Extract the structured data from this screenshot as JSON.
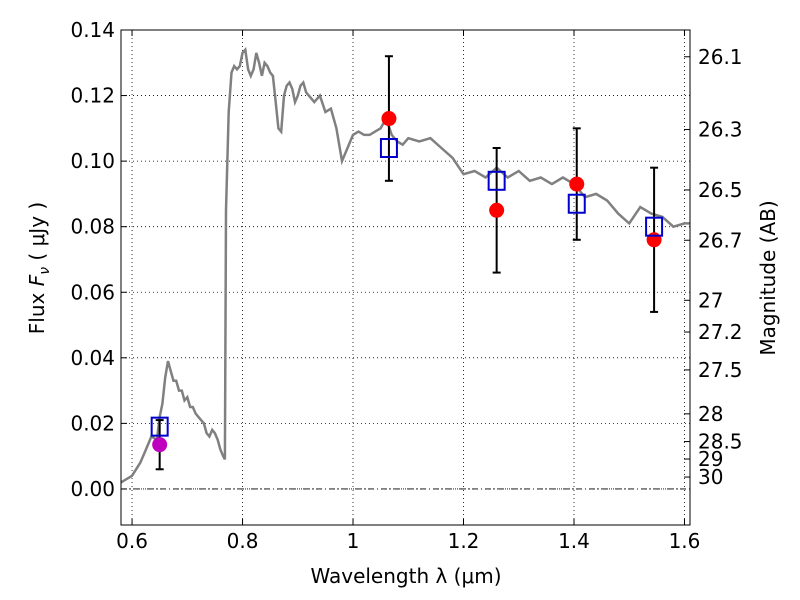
{
  "chart_data": {
    "type": "scatter",
    "xlabel": "Wavelength  λ (μm)",
    "ylabel": "Flux  F_ν  ( μJy )",
    "ylabel_parts": {
      "pre": "Flux  ",
      "sym": "F",
      "sub": "ν",
      "post": "  (  μJy  )"
    },
    "y2label": "Magnitude (AB)",
    "xlim": [
      0.58,
      1.61
    ],
    "ylim": [
      -0.011,
      0.14
    ],
    "grid": true,
    "x_ticks": [
      {
        "value": 0.6,
        "label": "0.6"
      },
      {
        "value": 0.8,
        "label": "0.8"
      },
      {
        "value": 1.0,
        "label": "1"
      },
      {
        "value": 1.2,
        "label": "1.2"
      },
      {
        "value": 1.4,
        "label": "1.4"
      },
      {
        "value": 1.6,
        "label": "1.6"
      }
    ],
    "y_ticks": [
      {
        "value": 0.0,
        "label": "0.00"
      },
      {
        "value": 0.02,
        "label": "0.02"
      },
      {
        "value": 0.04,
        "label": "0.04"
      },
      {
        "value": 0.06,
        "label": "0.06"
      },
      {
        "value": 0.08,
        "label": "0.08"
      },
      {
        "value": 0.1,
        "label": "0.10"
      },
      {
        "value": 0.12,
        "label": "0.12"
      },
      {
        "value": 0.14,
        "label": "0.14"
      }
    ],
    "y2_ticks": [
      {
        "value": 26.1,
        "label": "26.1"
      },
      {
        "value": 26.3,
        "label": "26.3"
      },
      {
        "value": 26.5,
        "label": "26.5"
      },
      {
        "value": 26.7,
        "label": "26.7"
      },
      {
        "value": 27.0,
        "label": "27"
      },
      {
        "value": 27.2,
        "label": "27.2"
      },
      {
        "value": 27.5,
        "label": "27.5"
      },
      {
        "value": 28.0,
        "label": "28"
      },
      {
        "value": 28.5,
        "label": "28.5"
      },
      {
        "value": 29.0,
        "label": "29"
      },
      {
        "value": 30.0,
        "label": "30"
      }
    ],
    "model_spectrum": {
      "color": "#808080",
      "x": [
        0.58,
        0.6,
        0.615,
        0.625,
        0.635,
        0.645,
        0.65,
        0.655,
        0.66,
        0.665,
        0.67,
        0.675,
        0.68,
        0.685,
        0.69,
        0.695,
        0.7,
        0.705,
        0.71,
        0.715,
        0.72,
        0.725,
        0.73,
        0.735,
        0.74,
        0.745,
        0.75,
        0.755,
        0.76,
        0.765,
        0.768,
        0.77,
        0.775,
        0.78,
        0.785,
        0.79,
        0.795,
        0.8,
        0.805,
        0.81,
        0.815,
        0.82,
        0.825,
        0.83,
        0.835,
        0.84,
        0.845,
        0.85,
        0.855,
        0.86,
        0.865,
        0.87,
        0.875,
        0.88,
        0.885,
        0.89,
        0.895,
        0.9,
        0.905,
        0.91,
        0.915,
        0.92,
        0.93,
        0.94,
        0.95,
        0.96,
        0.97,
        0.98,
        0.99,
        1.0,
        1.01,
        1.02,
        1.03,
        1.04,
        1.05,
        1.06,
        1.07,
        1.08,
        1.09,
        1.1,
        1.12,
        1.14,
        1.16,
        1.18,
        1.2,
        1.22,
        1.24,
        1.26,
        1.28,
        1.3,
        1.32,
        1.34,
        1.36,
        1.38,
        1.4,
        1.42,
        1.44,
        1.46,
        1.48,
        1.5,
        1.52,
        1.54,
        1.56,
        1.58,
        1.6,
        1.61
      ],
      "y": [
        0.002,
        0.004,
        0.008,
        0.012,
        0.016,
        0.015,
        0.022,
        0.026,
        0.034,
        0.039,
        0.036,
        0.033,
        0.033,
        0.03,
        0.03,
        0.027,
        0.028,
        0.025,
        0.025,
        0.023,
        0.022,
        0.021,
        0.02,
        0.017,
        0.016,
        0.018,
        0.017,
        0.015,
        0.012,
        0.01,
        0.009,
        0.085,
        0.115,
        0.127,
        0.129,
        0.128,
        0.129,
        0.133,
        0.134,
        0.128,
        0.126,
        0.128,
        0.133,
        0.13,
        0.126,
        0.13,
        0.129,
        0.127,
        0.126,
        0.118,
        0.11,
        0.109,
        0.12,
        0.123,
        0.124,
        0.122,
        0.118,
        0.12,
        0.123,
        0.124,
        0.121,
        0.12,
        0.118,
        0.12,
        0.115,
        0.116,
        0.11,
        0.1,
        0.104,
        0.108,
        0.109,
        0.108,
        0.108,
        0.109,
        0.11,
        0.113,
        0.108,
        0.106,
        0.105,
        0.107,
        0.106,
        0.107,
        0.104,
        0.101,
        0.096,
        0.097,
        0.095,
        0.098,
        0.095,
        0.097,
        0.094,
        0.095,
        0.093,
        0.095,
        0.093,
        0.089,
        0.09,
        0.088,
        0.084,
        0.081,
        0.086,
        0.084,
        0.083,
        0.08,
        0.081,
        0.081
      ]
    },
    "observed": {
      "color": "#ff0000",
      "x": [
        1.065,
        1.26,
        1.405,
        1.545
      ],
      "y": [
        0.113,
        0.085,
        0.093,
        0.076
      ],
      "yerr": [
        0.019,
        0.019,
        0.017,
        0.022
      ]
    },
    "observed_optical": {
      "color": "#bf00bf",
      "x": [
        0.65
      ],
      "y": [
        0.0135
      ],
      "yerr": [
        0.0075
      ]
    },
    "model_band": {
      "color": "#0000cc",
      "x": [
        0.65,
        1.065,
        1.26,
        1.405,
        1.545
      ],
      "y": [
        0.019,
        0.104,
        0.094,
        0.087,
        0.08
      ]
    }
  }
}
